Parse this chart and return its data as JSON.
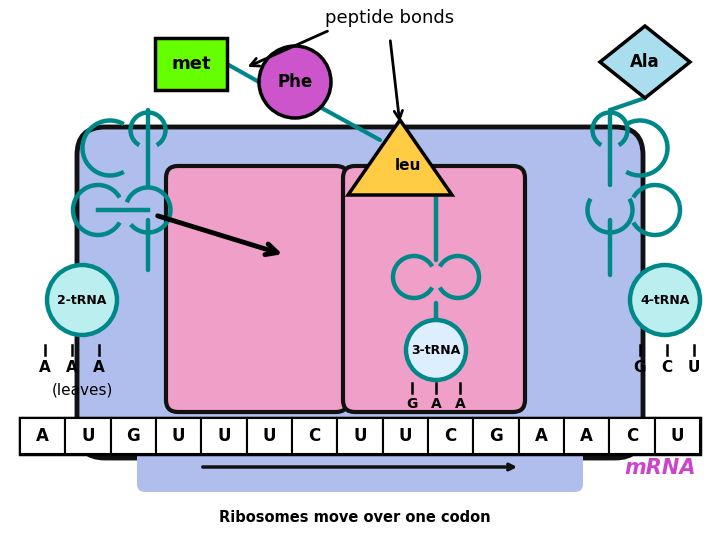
{
  "bg_color": "#ffffff",
  "ribosome_color": "#b0beee",
  "ribosome_edge": "#111111",
  "pink_box_color": "#f0a0c8",
  "pink_box_edge": "#111111",
  "tRNA_line_color": "#008888",
  "tRNA_fill": "#cceeee",
  "met_color": "#66ff00",
  "met_edge": "#000000",
  "phe_color": "#cc55cc",
  "phe_edge": "#000000",
  "leu_color": "#ffcc44",
  "leu_edge": "#000000",
  "ala_color": "#aaddee",
  "ala_edge": "#000000",
  "mrna_text_color": "#cc44cc",
  "title": "peptide bonds",
  "mrna_seq": [
    "A",
    "U",
    "G",
    "U",
    "U",
    "U",
    "C",
    "U",
    "U",
    "C",
    "G",
    "A",
    "A",
    "C",
    "U"
  ],
  "codon2": [
    "A",
    "A",
    "A"
  ],
  "codon3": [
    "G",
    "A",
    "A"
  ],
  "codon4": [
    "G",
    "C",
    "U"
  ],
  "bottom_text": "Ribosomes move over one codon",
  "mrna_arrow_color": "#111111",
  "label_2trna": "2-tRNA",
  "label_3trna": "3-tRNA",
  "label_4trna": "4-tRNA"
}
